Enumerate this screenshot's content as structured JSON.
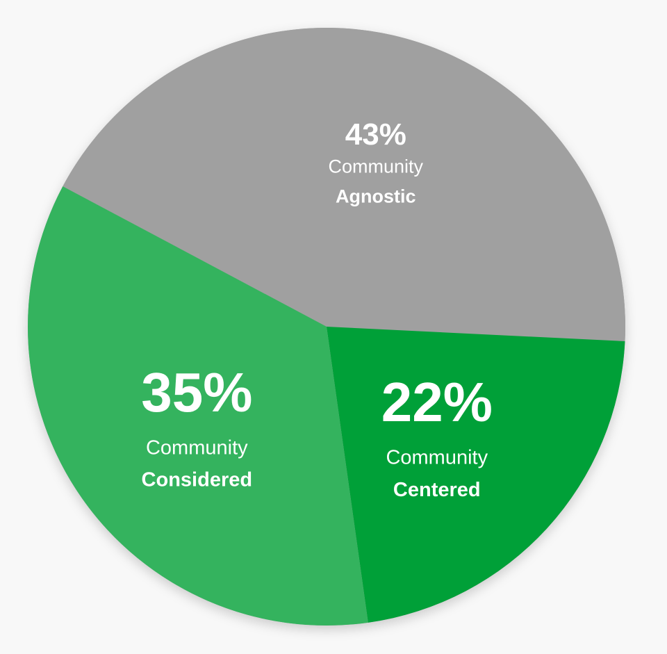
{
  "chart_data": {
    "type": "pie",
    "slices": [
      {
        "value": 43,
        "value_label": "43%",
        "line1": "Community",
        "line2": "Agnostic",
        "color": "#a0a0a0"
      },
      {
        "value": 22,
        "value_label": "22%",
        "line1": "Community",
        "line2": "Centered",
        "color": "#00a038"
      },
      {
        "value": 35,
        "value_label": "35%",
        "line1": "Community",
        "line2": "Considered",
        "color": "#34b35e"
      }
    ]
  }
}
